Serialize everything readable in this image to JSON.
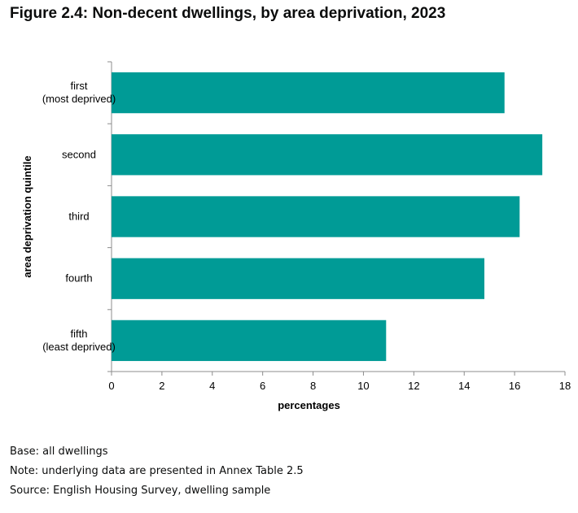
{
  "figure_title": "Figure 2.4: Non-decent dwellings, by area deprivation, 2023",
  "notes": {
    "base": "Base: all dwellings",
    "note": "Note: underlying data are presented in Annex Table 2.5",
    "source": "Source: English Housing Survey, dwelling sample"
  },
  "chart_data": {
    "type": "bar",
    "orientation": "horizontal",
    "categories": [
      [
        "first",
        "(most deprived)"
      ],
      [
        "second"
      ],
      [
        "third"
      ],
      [
        "fourth"
      ],
      [
        "fifth",
        "(least deprived)"
      ]
    ],
    "values": [
      15.6,
      17.1,
      16.2,
      14.8,
      10.9
    ],
    "xlabel": "percentages",
    "ylabel": "area deprivation quintile",
    "xlim": [
      0,
      18
    ],
    "xticks": [
      0,
      2,
      4,
      6,
      8,
      10,
      12,
      14,
      16,
      18
    ],
    "bar_color": "#009b96",
    "grid": false,
    "legend": "none"
  }
}
